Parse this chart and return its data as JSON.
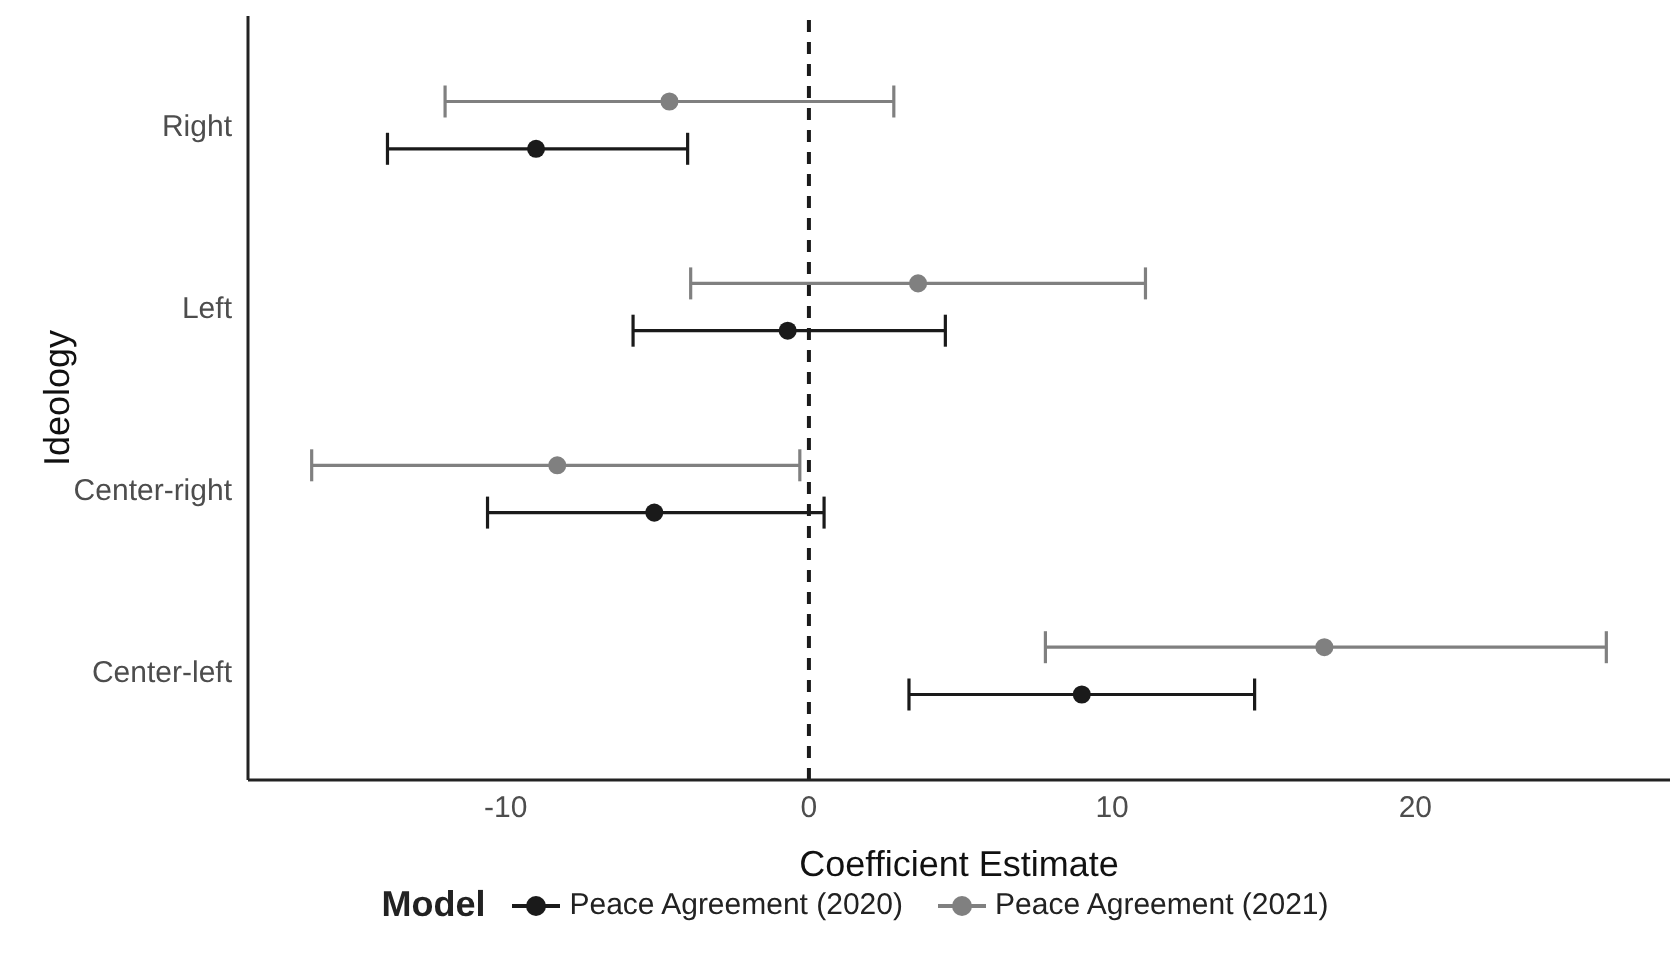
{
  "chart_data": {
    "type": "scatter",
    "orientation": "horizontal",
    "xlabel": "Coefficient Estimate",
    "ylabel": "Ideology",
    "legend_title": "Model",
    "legend": "bottom",
    "grid": false,
    "marker": "circle",
    "categories": [
      "Right",
      "Left",
      "Center-right",
      "Center-left"
    ],
    "xlim": [
      -18.5,
      28.4
    ],
    "xticks": [
      -10,
      0,
      10,
      20
    ],
    "ref_lines": [
      {
        "axis": "x",
        "value": 0,
        "color": "#1a1a1a",
        "line_style": "dashed"
      }
    ],
    "series": [
      {
        "name": "Peace Agreement (2020)",
        "color": "#1a1a1a",
        "values": [
          -9.0,
          -0.7,
          -5.1,
          9.0
        ],
        "errors": [
          [
            -13.9,
            -4.0
          ],
          [
            -5.8,
            4.5
          ],
          [
            -10.6,
            0.5
          ],
          [
            3.3,
            14.7
          ]
        ]
      },
      {
        "name": "Peace Agreement (2021)",
        "color": "#808080",
        "values": [
          -4.6,
          3.6,
          -8.3,
          17.0
        ],
        "errors": [
          [
            -12.0,
            2.8
          ],
          [
            -3.9,
            11.1
          ],
          [
            -16.4,
            -0.3
          ],
          [
            7.8,
            26.3
          ]
        ]
      }
    ]
  }
}
